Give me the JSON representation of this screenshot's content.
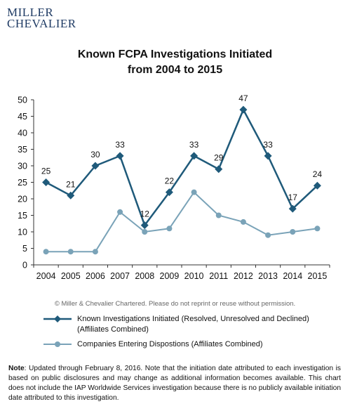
{
  "brand": {
    "line1": "MILLER",
    "line2": "CHEVALIER"
  },
  "title": {
    "line1": "Known FCPA Investigations Initiated",
    "line2": "from 2004 to 2015"
  },
  "chart_data": {
    "type": "line",
    "x": [
      "2004",
      "2005",
      "2006",
      "2007",
      "2008",
      "2009",
      "2010",
      "2011",
      "2012",
      "2013",
      "2014",
      "2015"
    ],
    "ylim": [
      0,
      50
    ],
    "yticks": [
      0,
      5,
      10,
      15,
      20,
      25,
      30,
      35,
      40,
      45,
      50
    ],
    "grid": false,
    "legend_position": "bottom",
    "series": [
      {
        "name": "Known Investigations Initiated (Resolved, Unresolved and Declined) (Affiliates Combined)",
        "values": [
          25,
          21,
          30,
          33,
          12,
          22,
          33,
          29,
          47,
          33,
          17,
          24
        ],
        "color": "#1f5a7a",
        "marker": "diamond",
        "data_labels": true
      },
      {
        "name": "Companies Entering Dispostions (Affiliates Combined)",
        "values": [
          4,
          4,
          4,
          16,
          10,
          11,
          22,
          15,
          13,
          9,
          10,
          11
        ],
        "color": "#7aa3b8",
        "marker": "circle",
        "data_labels": false
      }
    ]
  },
  "legend": {
    "item1_line1": "Known Investigations Initiated (Resolved, Unresolved and Declined)",
    "item1_line2": "(Affiliates Combined)",
    "item2": "Companies Entering Dispostions (Affiliates Combined)"
  },
  "copyright": "© Miller & Chevalier Chartered. Please do not reprint or reuse without permission.",
  "note": {
    "label": "Note",
    "text": ": Updated through February 8, 2016. Note that the initiation date attributed to each investigation is based on public disclosures and may change as additional information becomes available.  This chart does not include the IAP Worldwide Services investigation because there is no publicly available initiation date attributed to this investigation."
  }
}
